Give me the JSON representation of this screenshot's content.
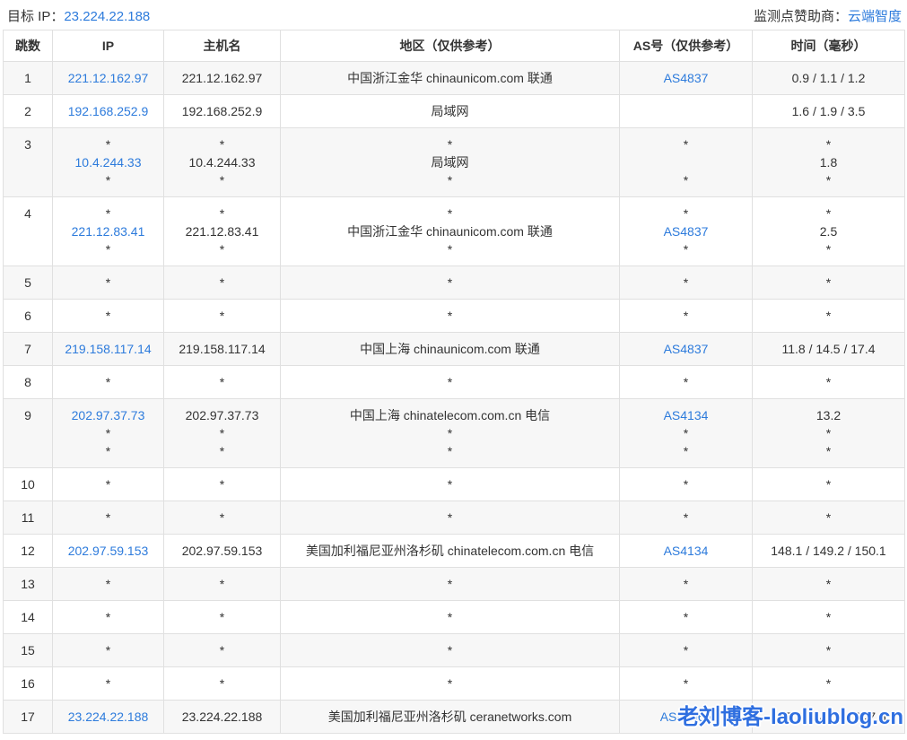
{
  "page": {
    "target_ip_label": "目标 IP：",
    "target_ip": "23.224.22.188",
    "sponsor_label": "监测点赞助商：",
    "sponsor_name": "云端智度"
  },
  "table": {
    "headers": [
      "跳数",
      "IP",
      "主机名",
      "地区（仅供参考）",
      "AS号（仅供参考）",
      "时间（毫秒）"
    ],
    "rows": [
      {
        "hop": "1",
        "ip": [
          "221.12.162.97"
        ],
        "host": [
          "221.12.162.97"
        ],
        "region": [
          "中国浙江金华 chinaunicom.com 联通"
        ],
        "as": [
          "AS4837"
        ],
        "time": [
          "0.9 / 1.1 / 1.2"
        ]
      },
      {
        "hop": "2",
        "ip": [
          "192.168.252.9"
        ],
        "host": [
          "192.168.252.9"
        ],
        "region": [
          "局域网"
        ],
        "as": [
          ""
        ],
        "time": [
          "1.6 / 1.9 / 3.5"
        ]
      },
      {
        "hop": "3",
        "ip": [
          "*",
          "10.4.244.33",
          "*"
        ],
        "host": [
          "*",
          "10.4.244.33",
          "*"
        ],
        "region": [
          "*",
          "局域网",
          "*"
        ],
        "as": [
          "*",
          "",
          "*"
        ],
        "time": [
          "*",
          "1.8",
          "*"
        ]
      },
      {
        "hop": "4",
        "ip": [
          "*",
          "221.12.83.41",
          "*"
        ],
        "host": [
          "*",
          "221.12.83.41",
          "*"
        ],
        "region": [
          "*",
          "中国浙江金华 chinaunicom.com 联通",
          "*"
        ],
        "as": [
          "*",
          "AS4837",
          "*"
        ],
        "time": [
          "*",
          "2.5",
          "*"
        ]
      },
      {
        "hop": "5",
        "ip": [
          "*"
        ],
        "host": [
          "*"
        ],
        "region": [
          "*"
        ],
        "as": [
          "*"
        ],
        "time": [
          "*"
        ]
      },
      {
        "hop": "6",
        "ip": [
          "*"
        ],
        "host": [
          "*"
        ],
        "region": [
          "*"
        ],
        "as": [
          "*"
        ],
        "time": [
          "*"
        ]
      },
      {
        "hop": "7",
        "ip": [
          "219.158.117.14"
        ],
        "host": [
          "219.158.117.14"
        ],
        "region": [
          "中国上海 chinaunicom.com 联通"
        ],
        "as": [
          "AS4837"
        ],
        "time": [
          "11.8 / 14.5 / 17.4"
        ]
      },
      {
        "hop": "8",
        "ip": [
          "*"
        ],
        "host": [
          "*"
        ],
        "region": [
          "*"
        ],
        "as": [
          "*"
        ],
        "time": [
          "*"
        ]
      },
      {
        "hop": "9",
        "ip": [
          "202.97.37.73",
          "*",
          "*"
        ],
        "host": [
          "202.97.37.73",
          "*",
          "*"
        ],
        "region": [
          "中国上海 chinatelecom.com.cn 电信",
          "*",
          "*"
        ],
        "as": [
          "AS4134",
          "*",
          "*"
        ],
        "time": [
          "13.2",
          "*",
          "*"
        ]
      },
      {
        "hop": "10",
        "ip": [
          "*"
        ],
        "host": [
          "*"
        ],
        "region": [
          "*"
        ],
        "as": [
          "*"
        ],
        "time": [
          "*"
        ]
      },
      {
        "hop": "11",
        "ip": [
          "*"
        ],
        "host": [
          "*"
        ],
        "region": [
          "*"
        ],
        "as": [
          "*"
        ],
        "time": [
          "*"
        ]
      },
      {
        "hop": "12",
        "ip": [
          "202.97.59.153"
        ],
        "host": [
          "202.97.59.153"
        ],
        "region": [
          "美国加利福尼亚州洛杉矶 chinatelecom.com.cn 电信"
        ],
        "as": [
          "AS4134"
        ],
        "time": [
          "148.1 / 149.2 / 150.1"
        ]
      },
      {
        "hop": "13",
        "ip": [
          "*"
        ],
        "host": [
          "*"
        ],
        "region": [
          "*"
        ],
        "as": [
          "*"
        ],
        "time": [
          "*"
        ]
      },
      {
        "hop": "14",
        "ip": [
          "*"
        ],
        "host": [
          "*"
        ],
        "region": [
          "*"
        ],
        "as": [
          "*"
        ],
        "time": [
          "*"
        ]
      },
      {
        "hop": "15",
        "ip": [
          "*"
        ],
        "host": [
          "*"
        ],
        "region": [
          "*"
        ],
        "as": [
          "*"
        ],
        "time": [
          "*"
        ]
      },
      {
        "hop": "16",
        "ip": [
          "*"
        ],
        "host": [
          "*"
        ],
        "region": [
          "*"
        ],
        "as": [
          "*"
        ],
        "time": [
          "*"
        ]
      },
      {
        "hop": "17",
        "ip": [
          "23.224.22.188"
        ],
        "host": [
          "23.224.22.188"
        ],
        "region": [
          "美国加利福尼亚州洛杉矶 ceranetworks.com"
        ],
        "as": [
          "AS40065"
        ],
        "time": [
          "147.3 / 147.4 / 147.6"
        ]
      }
    ]
  },
  "watermark": "老刘博客-laoliublog.cn",
  "colors": {
    "link": "#2d7bdc",
    "watermark": "#2f6fe0",
    "stripe": "#f7f7f7",
    "border": "#e0e0e0"
  }
}
